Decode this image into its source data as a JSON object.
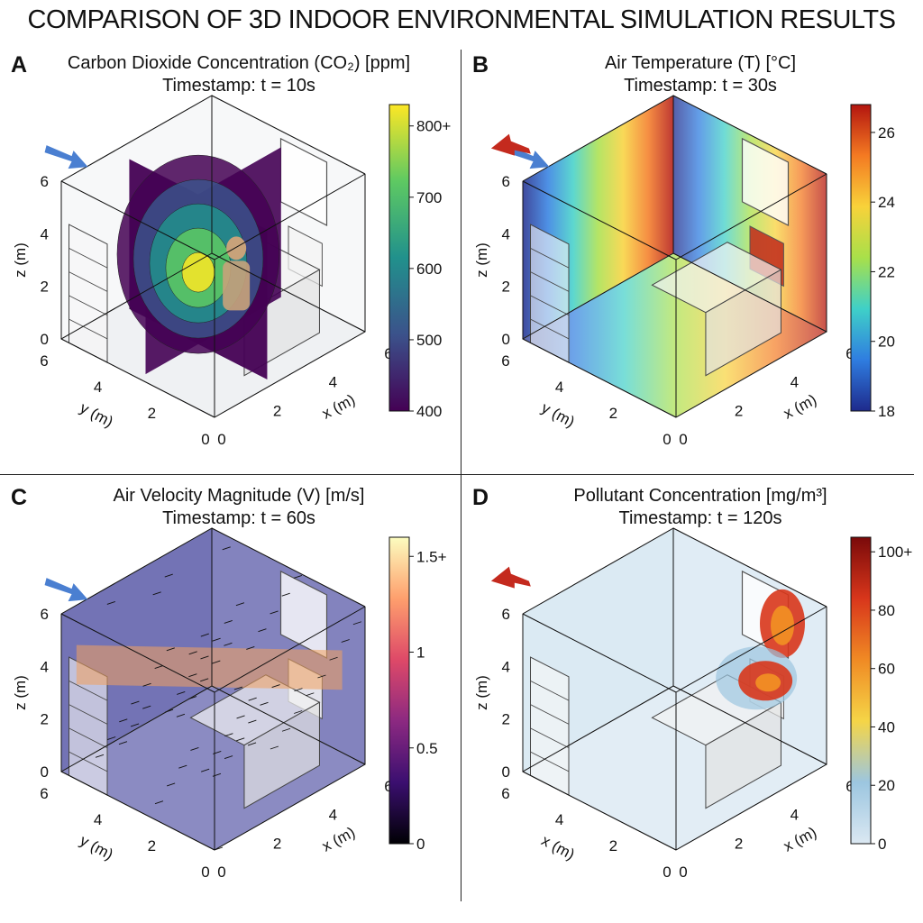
{
  "title": "COMPARISON OF 3D INDOOR ENVIRONMENTAL SIMULATION RESULTS",
  "chart_data": [
    {
      "type": "heatmap",
      "panel_label": "A",
      "title": "Carbon Dioxide Concentration (CO₂) [ppm]",
      "subtitle": "Timestamp: t = 10s",
      "axes": {
        "x_label": "x (m)",
        "y_label": "y (m)",
        "z_label": "z (m)",
        "x_ticks": [
          "0",
          "2",
          "4",
          "6"
        ],
        "y_ticks": [
          "0",
          "2",
          "4",
          "6"
        ],
        "z_ticks": [
          "0",
          "2",
          "4",
          "6"
        ]
      },
      "colorbar": {
        "ticks": [
          "800+",
          "700",
          "600",
          "500",
          "400"
        ],
        "values": [
          800,
          700,
          600,
          500,
          400
        ],
        "range": [
          400,
          830
        ],
        "colormap": "viridis",
        "colors": [
          "#440154",
          "#3b528b",
          "#21918c",
          "#5ec962",
          "#fde725"
        ]
      },
      "inlet_arrow_color": "#4a7fd1"
    },
    {
      "type": "heatmap",
      "panel_label": "B",
      "title": "Air Temperature (T) [°C]",
      "subtitle": "Timestamp: t = 30s",
      "axes": {
        "x_label": "x (m)",
        "y_label": "y (m)",
        "z_label": "z (m)",
        "x_ticks": [
          "0",
          "2",
          "4",
          "6"
        ],
        "y_ticks": [
          "0",
          "2",
          "4",
          "6"
        ],
        "z_ticks": [
          "0",
          "2",
          "4",
          "6"
        ]
      },
      "colorbar": {
        "ticks": [
          "26",
          "24",
          "22",
          "20",
          "18"
        ],
        "values": [
          26,
          24,
          22,
          20,
          18
        ],
        "range": [
          18,
          26.8
        ],
        "colormap": "jet",
        "colors": [
          "#1e2a8c",
          "#2f7de0",
          "#3fd0c8",
          "#a8e04a",
          "#f8d23a",
          "#f47a22",
          "#b3150f"
        ]
      },
      "inlet_arrow_color": "#4a7fd1",
      "outlet_arrow_color": "#c42a1e"
    },
    {
      "type": "heatmap",
      "panel_label": "C",
      "title": "Air Velocity Magnitude (V) [m/s]",
      "subtitle": "Timestamp: t = 60s",
      "axes": {
        "x_label": "x (m)",
        "y_label": "y (m)",
        "z_label": "z (m)",
        "x_ticks": [
          "0",
          "2",
          "4",
          "6"
        ],
        "y_ticks": [
          "0",
          "2",
          "4",
          "6"
        ],
        "z_ticks": [
          "0",
          "2",
          "4",
          "6"
        ]
      },
      "colorbar": {
        "ticks": [
          "1.5+",
          "1",
          "0.5",
          "0"
        ],
        "values": [
          1.5,
          1,
          0.5,
          0
        ],
        "range": [
          0,
          1.6
        ],
        "colormap": "magma",
        "colors": [
          "#000004",
          "#3b0f70",
          "#8c2981",
          "#de4968",
          "#fe9f6d",
          "#fcfdbf"
        ]
      },
      "inlet_arrow_color": "#4a7fd1"
    },
    {
      "type": "heatmap",
      "panel_label": "D",
      "title": "Pollutant Concentration [mg/m³]",
      "subtitle": "Timestamp: t = 120s",
      "axes": {
        "x_label": "x (m)",
        "y_label": "x (m)",
        "z_label": "z (m)",
        "x_ticks": [
          "0",
          "2",
          "4",
          "6"
        ],
        "y_ticks": [
          "0",
          "2",
          "4",
          "6"
        ],
        "z_ticks": [
          "0",
          "2",
          "4",
          "6"
        ]
      },
      "colorbar": {
        "ticks": [
          "100+",
          "80",
          "60",
          "40",
          "20",
          "0"
        ],
        "values": [
          100,
          80,
          60,
          40,
          20,
          0
        ],
        "range": [
          0,
          105
        ],
        "colormap": "hot",
        "colors": [
          "#dbe8f2",
          "#9cc6e0",
          "#f5d547",
          "#f08a24",
          "#d8361b",
          "#7a0a0a"
        ]
      },
      "outlet_arrow_color": "#c42a1e"
    }
  ]
}
